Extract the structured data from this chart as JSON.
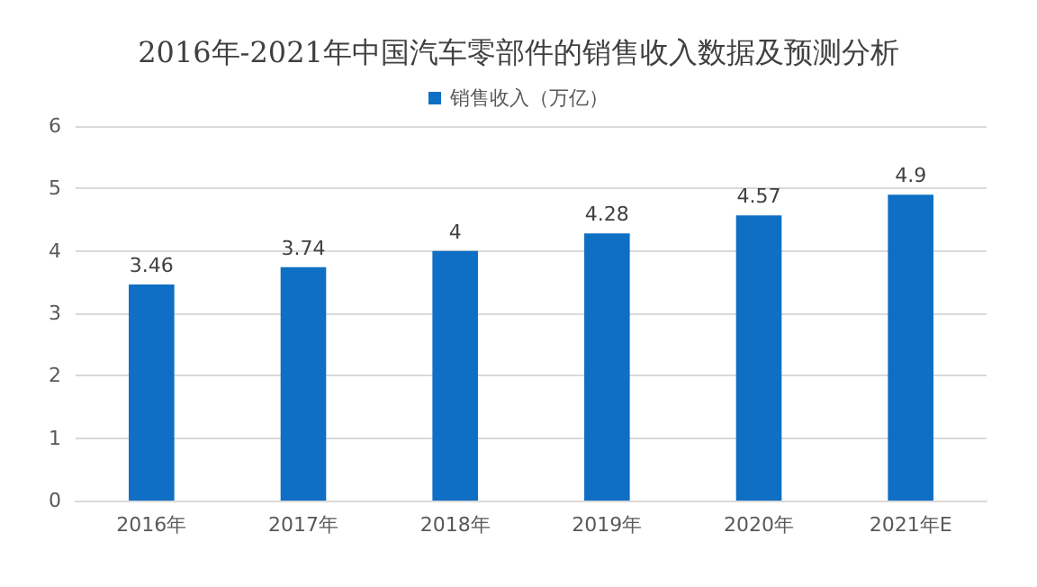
{
  "chart_data": {
    "type": "bar",
    "title": "2016年-2021年中国汽车零部件的销售收入数据及预测分析",
    "categories": [
      "2016年",
      "2017年",
      "2018年",
      "2019年",
      "2020年",
      "2021年E"
    ],
    "series": [
      {
        "name": "销售收入（万亿）",
        "color": "#0e6fc4",
        "values": [
          3.46,
          3.74,
          4,
          4.28,
          4.57,
          4.9
        ]
      }
    ],
    "ylim": [
      0,
      6
    ],
    "yticks": [
      0,
      1,
      2,
      3,
      4,
      5,
      6
    ],
    "grid": "y",
    "legend": "top",
    "data_labels": true
  }
}
